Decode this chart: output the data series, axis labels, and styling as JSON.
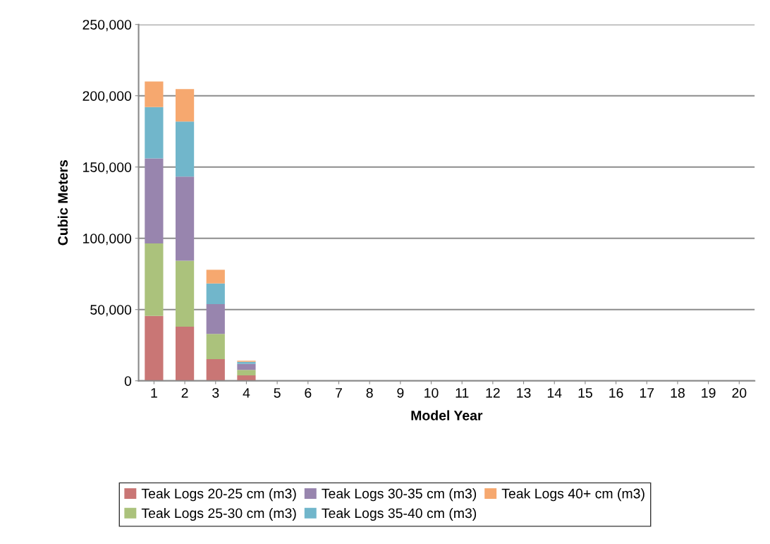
{
  "chart_data": {
    "type": "bar",
    "stacked": true,
    "xlabel": "Model Year",
    "ylabel": "Cubic Meters",
    "categories": [
      "1",
      "2",
      "3",
      "4",
      "5",
      "6",
      "7",
      "8",
      "9",
      "10",
      "11",
      "12",
      "13",
      "14",
      "15",
      "16",
      "17",
      "18",
      "19",
      "20"
    ],
    "series": [
      {
        "name": "Teak Logs 20-25 cm (m3)",
        "color": "#c97675",
        "values": [
          45500,
          38000,
          15200,
          3800,
          0,
          0,
          0,
          0,
          0,
          0,
          0,
          0,
          0,
          0,
          0,
          0,
          0,
          0,
          0,
          0
        ]
      },
      {
        "name": "Teak Logs 25-30 cm (m3)",
        "color": "#abc27c",
        "values": [
          50900,
          46200,
          17700,
          3800,
          0,
          0,
          0,
          0,
          0,
          0,
          0,
          0,
          0,
          0,
          0,
          0,
          0,
          0,
          0,
          0
        ]
      },
      {
        "name": "Teak Logs 30-35 cm (m3)",
        "color": "#9885ae",
        "values": [
          59600,
          59100,
          20900,
          4300,
          0,
          0,
          0,
          0,
          0,
          0,
          0,
          0,
          0,
          0,
          0,
          0,
          0,
          0,
          0,
          0
        ]
      },
      {
        "name": "Teak Logs 35-40 cm (m3)",
        "color": "#71b6cb",
        "values": [
          36000,
          38600,
          14500,
          1500,
          0,
          0,
          0,
          0,
          0,
          0,
          0,
          0,
          0,
          0,
          0,
          0,
          0,
          0,
          0,
          0
        ]
      },
      {
        "name": "Teak Logs 40+ cm (m3)",
        "color": "#f6a86f",
        "values": [
          18000,
          22800,
          9600,
          700,
          0,
          0,
          0,
          0,
          0,
          0,
          0,
          0,
          0,
          0,
          0,
          0,
          0,
          0,
          0,
          0
        ]
      }
    ],
    "ylim": [
      0,
      250000
    ],
    "yticks": [
      {
        "value": 0,
        "label": "0"
      },
      {
        "value": 50000,
        "label": "50,000"
      },
      {
        "value": 100000,
        "label": "100,000"
      },
      {
        "value": 150000,
        "label": "150,000"
      },
      {
        "value": 200000,
        "label": "200,000"
      },
      {
        "value": 250000,
        "label": "250,000"
      }
    ],
    "grid": "y",
    "legend": "bottom"
  }
}
